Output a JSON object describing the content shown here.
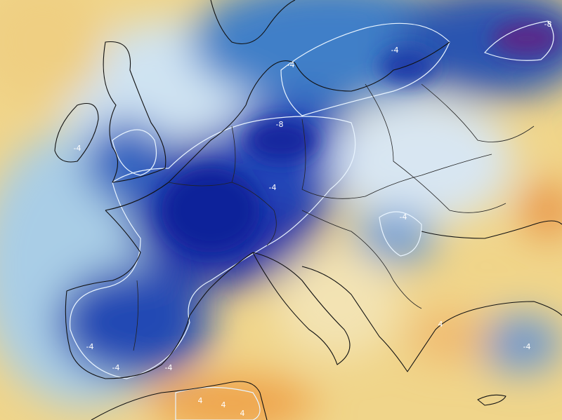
{
  "contour_labels": [
    "-8",
    "-4",
    "-4",
    "-8",
    "-4",
    "-4",
    "-4",
    "4",
    "-4",
    "-4",
    "-4",
    "-4",
    "4",
    "4",
    "4"
  ]
}
